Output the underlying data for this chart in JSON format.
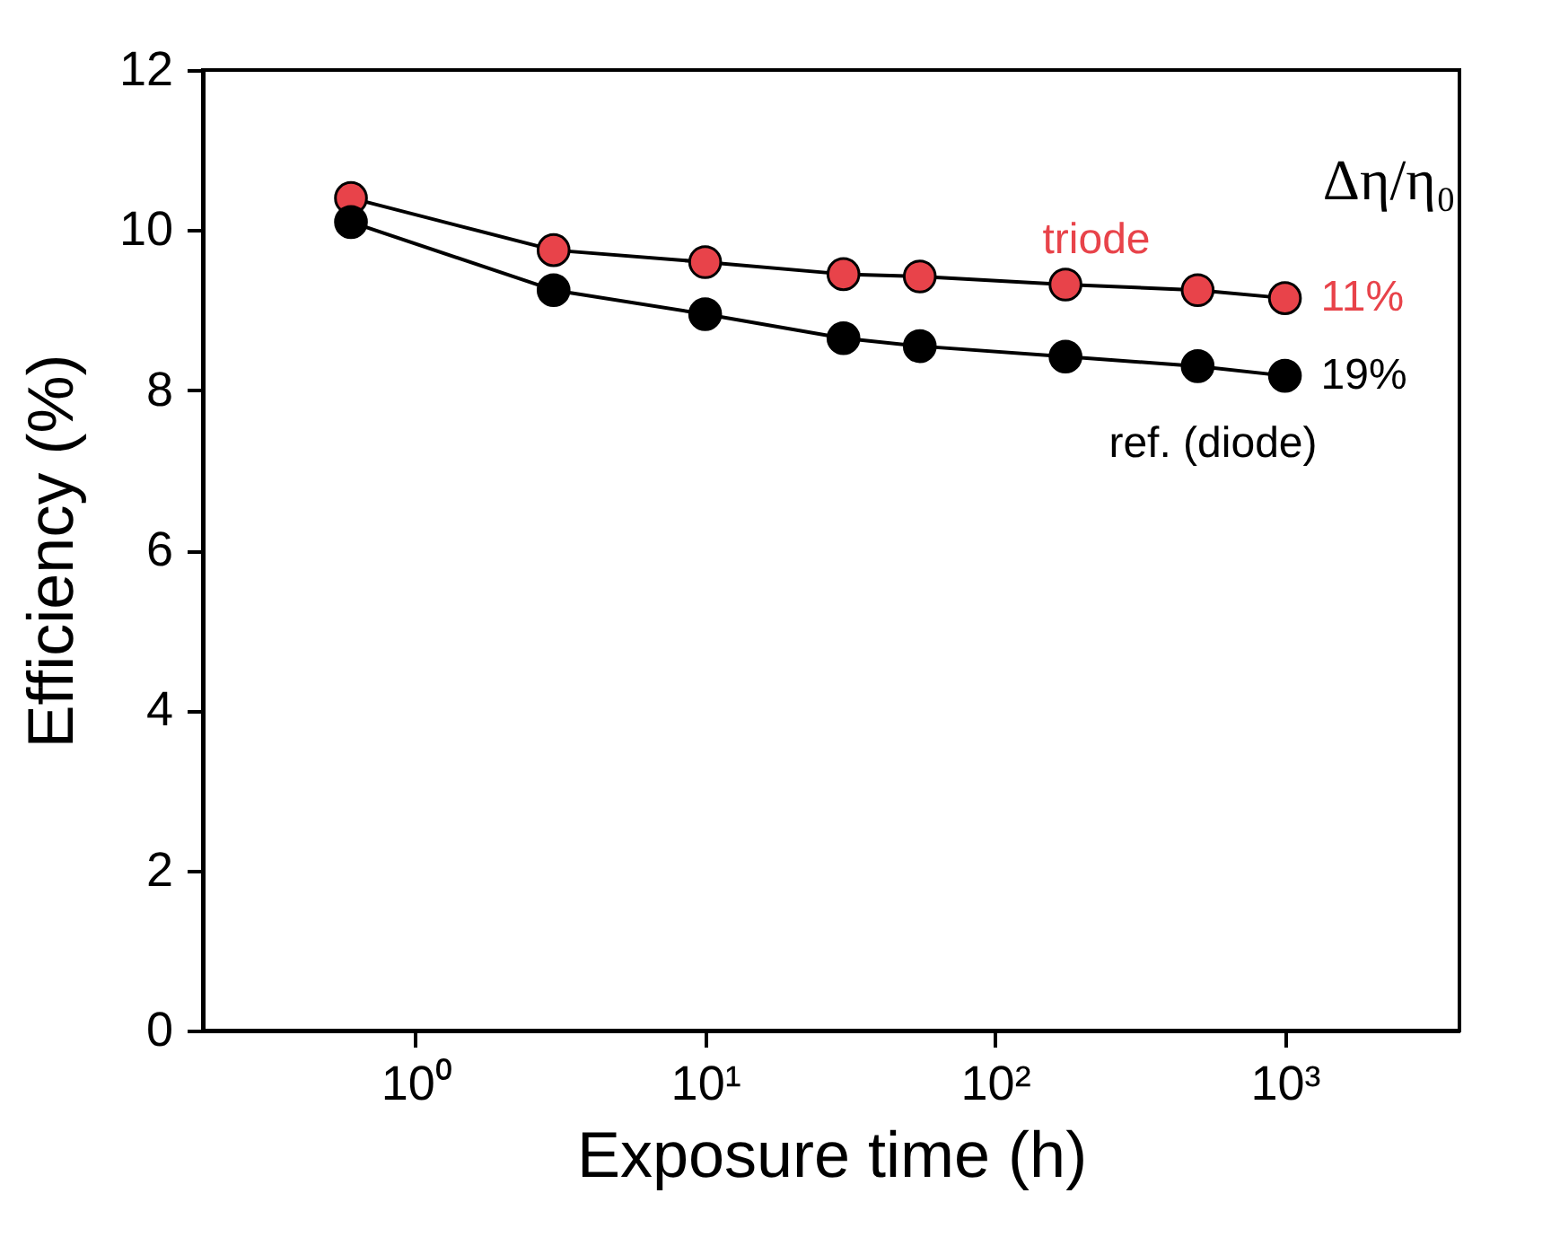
{
  "chart_data": {
    "type": "line",
    "xlabel": "Exposure time (h)",
    "ylabel": "Efficiency (%)",
    "log": "x",
    "xlim": [
      0.185,
      4000
    ],
    "xticks": [
      {
        "value": 1,
        "label": "10⁰"
      },
      {
        "value": 10,
        "label": "10¹"
      },
      {
        "value": 100,
        "label": "10²"
      },
      {
        "value": 1000,
        "label": "10³"
      }
    ],
    "ylim": [
      0,
      12
    ],
    "yticks": [
      0,
      2,
      4,
      6,
      8,
      10,
      12
    ],
    "grid": false,
    "legend": false,
    "marker": "circle",
    "line_style": "solid",
    "x": [
      0.6,
      3,
      10,
      30,
      55,
      175,
      500,
      1000
    ],
    "series": [
      {
        "name": "triode",
        "color": "#e8434a",
        "values": [
          10.4,
          9.75,
          9.6,
          9.45,
          9.42,
          9.32,
          9.25,
          9.15
        ]
      },
      {
        "name": "ref. (diode)",
        "color": "#000000",
        "values": [
          10.1,
          9.25,
          8.95,
          8.65,
          8.55,
          8.42,
          8.3,
          8.18
        ]
      }
    ],
    "annotations": [
      {
        "text": "11%",
        "x": 1000,
        "y": 9.15
      },
      {
        "text": "19%",
        "x": 1000,
        "y": 8.18
      },
      "Δη/η₀"
    ]
  }
}
